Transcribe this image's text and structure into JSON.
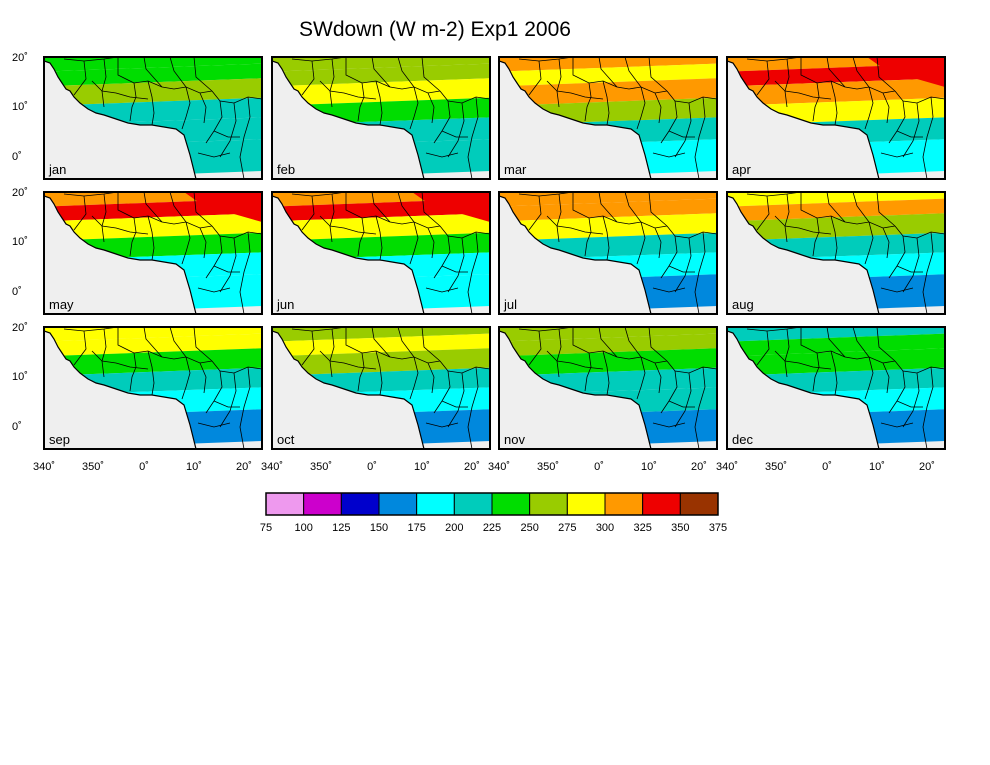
{
  "title": "SWdown (W m-2) Exp1 2006",
  "panels": [
    "jan",
    "feb",
    "mar",
    "apr",
    "may",
    "jun",
    "jul",
    "aug",
    "sep",
    "oct",
    "nov",
    "dec"
  ],
  "lat_ticks": [
    "20˚",
    "10˚",
    "0˚"
  ],
  "lon_ticks": [
    "340˚",
    "350˚",
    "0˚",
    "10˚",
    "20˚"
  ],
  "colorbar": {
    "colors": [
      "#ee99ee",
      "#cc00cc",
      "#0000cc",
      "#0088dd",
      "#00ffff",
      "#00ccbb",
      "#00dd00",
      "#99cc00",
      "#ffff00",
      "#ff9900",
      "#ee0000",
      "#993300"
    ],
    "tick_labels": [
      "75",
      "100",
      "125",
      "150",
      "175",
      "200",
      "225",
      "250",
      "275",
      "300",
      "325",
      "350",
      "375"
    ]
  },
  "panel_fields": {
    "jan": {
      "colors": [
        "#00dd00",
        "#00dd00",
        "#99cc00",
        "#00ccbb",
        "#00ccbb",
        "#00ccbb"
      ]
    },
    "feb": {
      "colors": [
        "#99cc00",
        "#99cc00",
        "#ffff00",
        "#00dd00",
        "#00ccbb",
        "#00ccbb"
      ]
    },
    "mar": {
      "colors": [
        "#ff9900",
        "#ffff00",
        "#ff9900",
        "#99cc00",
        "#00ccbb",
        "#00ffff"
      ]
    },
    "apr": {
      "colors": [
        "#ff9900",
        "#ee0000",
        "#ff9900",
        "#ffff00",
        "#00ccbb",
        "#00ffff"
      ]
    },
    "may": {
      "colors": [
        "#ff9900",
        "#ee0000",
        "#ffff00",
        "#00dd00",
        "#00ffff",
        "#00ffff"
      ]
    },
    "jun": {
      "colors": [
        "#ff9900",
        "#ee0000",
        "#ffff00",
        "#00dd00",
        "#00ffff",
        "#00ffff"
      ]
    },
    "jul": {
      "colors": [
        "#ff9900",
        "#ff9900",
        "#ffff00",
        "#00ccbb",
        "#00ffff",
        "#0088dd"
      ]
    },
    "aug": {
      "colors": [
        "#ffff00",
        "#ff9900",
        "#99cc00",
        "#00ccbb",
        "#00ffff",
        "#0088dd"
      ]
    },
    "sep": {
      "colors": [
        "#ffff00",
        "#ffff00",
        "#00dd00",
        "#00ccbb",
        "#00ffff",
        "#0088dd"
      ]
    },
    "oct": {
      "colors": [
        "#99cc00",
        "#ffff00",
        "#99cc00",
        "#00ccbb",
        "#00ffff",
        "#0088dd"
      ]
    },
    "nov": {
      "colors": [
        "#99cc00",
        "#99cc00",
        "#00dd00",
        "#00ccbb",
        "#00ccbb",
        "#0088dd"
      ]
    },
    "dec": {
      "colors": [
        "#00ccbb",
        "#00dd00",
        "#00dd00",
        "#00ccbb",
        "#00ffff",
        "#0088dd"
      ]
    }
  }
}
